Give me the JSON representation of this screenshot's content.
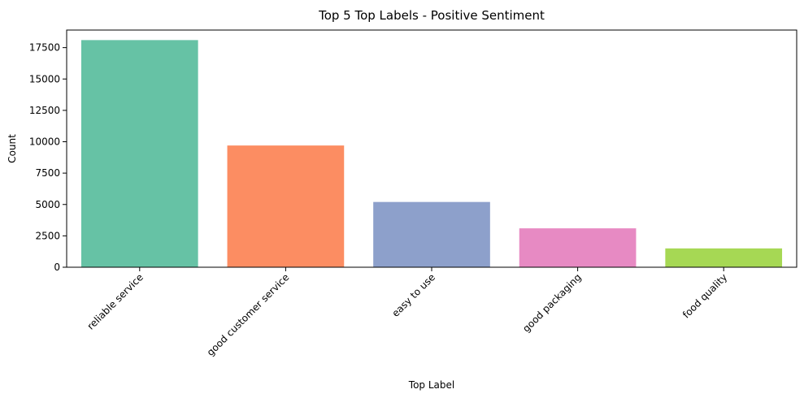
{
  "chart_data": {
    "type": "bar",
    "title": "Top 5 Top Labels - Positive Sentiment",
    "xlabel": "Top Label",
    "ylabel": "Count",
    "categories": [
      "reliable service",
      "good customer service",
      "easy to use",
      "good packaging",
      "food quality"
    ],
    "values": [
      18100,
      9700,
      5200,
      3100,
      1500
    ],
    "colors": [
      "#66c2a5",
      "#fc8d62",
      "#8da0cb",
      "#e78ac3",
      "#a6d854"
    ],
    "ylim": [
      0,
      18900
    ],
    "yticks": [
      0,
      2500,
      5000,
      7500,
      10000,
      12500,
      15000,
      17500
    ],
    "ytick_labels": [
      "0",
      "2500",
      "5000",
      "7500",
      "10000",
      "12500",
      "15000",
      "17500"
    ],
    "xtick_rotation": 45,
    "grid": false,
    "legend": "none"
  }
}
